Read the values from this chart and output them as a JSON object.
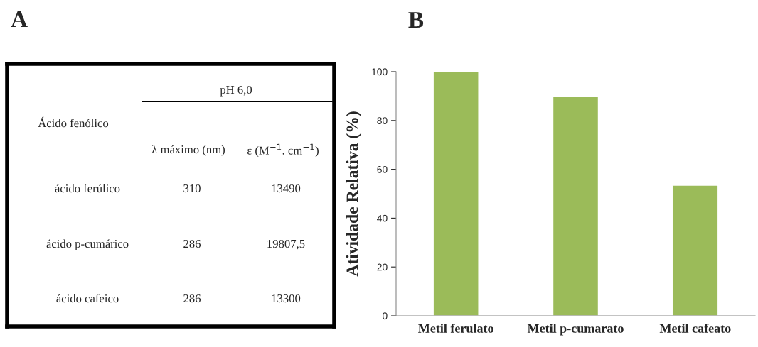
{
  "chart_data": [
    {
      "type": "other",
      "title": "A",
      "annotations": [
        "pH 6,0",
        "Ácido fenólico",
        "λ máximo (nm)",
        "ε (M$^{−1}$. cm$^{−1}$)",
        "ácido ferúlico",
        "310",
        "13490",
        "ácido p-cumárico",
        "286",
        "19807,5",
        "ácido cafeico",
        "286",
        "13300"
      ]
    },
    {
      "type": "bar",
      "title": "B",
      "ylabel": "Atividade Relativa (%)",
      "categories": [
        "Metil ferulato",
        "Metil p-cumarato",
        "Metil cafeato"
      ],
      "values": [
        100,
        90,
        53.5
      ],
      "color": "#9bbb59",
      "ylim": [
        0,
        100
      ],
      "yticks": [
        0,
        20,
        40,
        60,
        80,
        100
      ],
      "grid": false
    }
  ]
}
